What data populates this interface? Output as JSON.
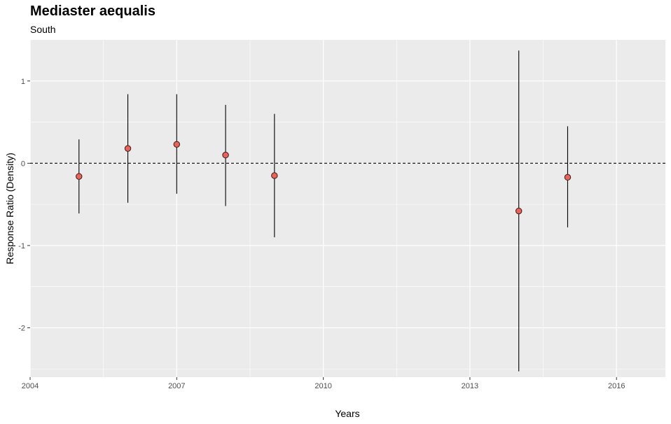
{
  "chart_data": {
    "type": "scatter",
    "title": "Mediaster aequalis",
    "subtitle": "South",
    "xlabel": "Years",
    "ylabel": "Response Ratio (Density)",
    "xlim": [
      2004,
      2017
    ],
    "ylim": [
      -2.6,
      1.5
    ],
    "x_ticks": [
      2004,
      2007,
      2010,
      2013,
      2016
    ],
    "y_ticks": [
      -2,
      -1,
      0,
      1
    ],
    "y_tick_labels": [
      "-2",
      "-1",
      "0",
      "1"
    ],
    "reference_line": 0,
    "points": [
      {
        "year": 2005,
        "value": -0.16,
        "lower": -0.61,
        "upper": 0.29
      },
      {
        "year": 2006,
        "value": 0.18,
        "lower": -0.48,
        "upper": 0.84
      },
      {
        "year": 2007,
        "value": 0.23,
        "lower": -0.37,
        "upper": 0.84
      },
      {
        "year": 2008,
        "value": 0.1,
        "lower": -0.52,
        "upper": 0.71
      },
      {
        "year": 2009,
        "value": -0.15,
        "lower": -0.9,
        "upper": 0.6
      },
      {
        "year": 2014,
        "value": -0.58,
        "lower": -2.53,
        "upper": 1.37
      },
      {
        "year": 2015,
        "value": -0.17,
        "lower": -0.78,
        "upper": 0.45
      }
    ],
    "point_color": "#e8635a",
    "panel_color": "#ebebeb",
    "grid": true
  }
}
